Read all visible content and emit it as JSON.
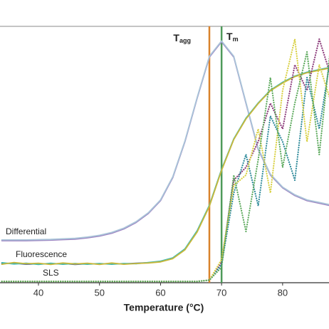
{
  "chart_data": {
    "type": "line",
    "x_label": "Temperature (°C)",
    "xlim": [
      33.7,
      87.6
    ],
    "ylim": [
      0,
      100
    ],
    "xticks": [
      40,
      50,
      60,
      70,
      80
    ],
    "x": [
      34,
      36,
      38,
      40,
      42,
      44,
      46,
      48,
      50,
      52,
      54,
      56,
      58,
      60,
      62,
      64,
      66,
      68,
      70,
      72,
      74,
      76,
      78,
      80,
      82,
      84,
      86,
      88
    ],
    "series": [
      {
        "color": "#9b7fc0",
        "line_style": "solid",
        "values": [
          16.4,
          16.4,
          16.4,
          16.5,
          16.6,
          16.8,
          17,
          17.5,
          18.2,
          19.3,
          21,
          23.5,
          27,
          32,
          41,
          55,
          72,
          88,
          94,
          88,
          70,
          52,
          42,
          37,
          34,
          32,
          31,
          30
        ]
      },
      {
        "color": "#a9c4d8",
        "line_style": "solid",
        "values": [
          16.7,
          16.7,
          16.7,
          16.8,
          16.9,
          17.1,
          17.3,
          17.8,
          18.5,
          19.6,
          21.3,
          23.8,
          27.3,
          32.3,
          41.3,
          55.3,
          72.3,
          88.3,
          94.3,
          88.3,
          70.3,
          52.3,
          42.3,
          37.3,
          34.3,
          32.3,
          31.3,
          30.3
        ]
      },
      {
        "color": "#3d5fa8",
        "line_style": "solid",
        "values": [
          7.5,
          7.6,
          7.2,
          7.4,
          7.3,
          7.5,
          7.1,
          7.4,
          7.3,
          7.5,
          7.3,
          7.6,
          7.8,
          8.2,
          9.5,
          13,
          20,
          30,
          44,
          56,
          64,
          70,
          75,
          78,
          80.5,
          82,
          83,
          84
        ]
      },
      {
        "color": "#3fb8b0",
        "line_style": "solid",
        "values": [
          7.8,
          7.3,
          7.6,
          7.1,
          7.6,
          7.2,
          7.5,
          7.2,
          7.5,
          7.2,
          7.5,
          7.4,
          7.9,
          8.4,
          9.7,
          13.2,
          20.3,
          30.2,
          44.2,
          56.1,
          64.2,
          70.1,
          75.1,
          78.2,
          80.6,
          82.1,
          83.1,
          84.1
        ]
      },
      {
        "color": "#c9b83a",
        "line_style": "solid",
        "values": [
          7.2,
          7.9,
          7.4,
          7.6,
          7.1,
          7.7,
          7.3,
          7.6,
          7.1,
          7.7,
          7.2,
          7.5,
          7.7,
          8.1,
          9.4,
          12.8,
          19.8,
          29.8,
          43.8,
          55.9,
          63.9,
          69.9,
          74.9,
          77.9,
          80.4,
          81.9,
          82.9,
          83.9
        ]
      },
      {
        "color": "#8b3a7a",
        "line_style": "dotted",
        "values": [
          0.5,
          0.5,
          0.5,
          0.5,
          0.5,
          0.5,
          0.5,
          0.5,
          0.5,
          0.5,
          0.5,
          0.5,
          0.5,
          0.5,
          0.5,
          0.5,
          0.5,
          1,
          8,
          40,
          45,
          55,
          70,
          60,
          85,
          75,
          95,
          80
        ]
      },
      {
        "color": "#2e8a9a",
        "line_style": "dotted",
        "values": [
          0.5,
          0.5,
          0.5,
          0.5,
          0.5,
          0.5,
          0.5,
          0.5,
          0.5,
          0.5,
          0.5,
          0.5,
          0.5,
          0.5,
          0.5,
          0.5,
          0.5,
          1,
          7,
          35,
          50,
          30,
          65,
          55,
          40,
          80,
          60,
          90
        ]
      },
      {
        "color": "#d8d040",
        "line_style": "dotted",
        "values": [
          0.5,
          0.5,
          0.5,
          0.5,
          0.5,
          0.5,
          0.5,
          0.5,
          0.5,
          0.5,
          0.5,
          0.5,
          0.5,
          0.5,
          0.5,
          0.5,
          0.5,
          1,
          9,
          38,
          42,
          60,
          35,
          75,
          95,
          55,
          85,
          70
        ]
      },
      {
        "color": "#5aa85a",
        "line_style": "dotted",
        "values": [
          0.5,
          0.5,
          0.5,
          0.5,
          0.5,
          0.5,
          0.5,
          0.5,
          0.5,
          0.5,
          0.5,
          0.5,
          0.5,
          0.5,
          0.5,
          0.5,
          0.5,
          1,
          6,
          42,
          20,
          48,
          80,
          45,
          70,
          90,
          50,
          95
        ]
      }
    ],
    "vlines": [
      {
        "x": 68,
        "label": "T",
        "sub": "agg",
        "color": "#d9822b"
      },
      {
        "x": 70,
        "label": "T",
        "sub": "m",
        "color": "#4f9a5a"
      }
    ],
    "annotations": [
      "Differential",
      "Fluorescence",
      "SLS"
    ]
  }
}
